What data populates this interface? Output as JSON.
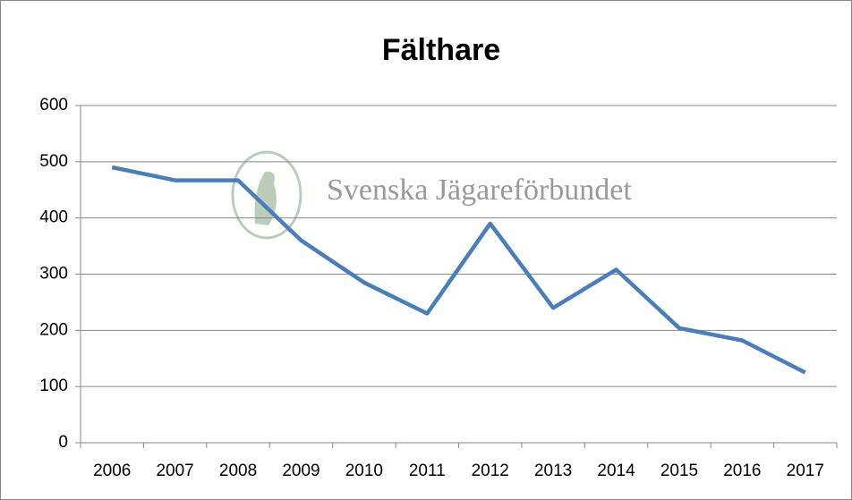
{
  "chart_data": {
    "type": "line",
    "title": "Fälthare",
    "watermark": "Svenska Jägareförbundet",
    "categories": [
      "2006",
      "2007",
      "2008",
      "2009",
      "2010",
      "2011",
      "2012",
      "2013",
      "2014",
      "2015",
      "2016",
      "2017"
    ],
    "values": [
      490,
      467,
      467,
      360,
      285,
      230,
      390,
      240,
      308,
      204,
      182,
      125
    ],
    "color": "#4a7ebb",
    "ylim": [
      0,
      600
    ],
    "yticks": [
      0,
      100,
      200,
      300,
      400,
      500,
      600
    ],
    "grid": true
  }
}
